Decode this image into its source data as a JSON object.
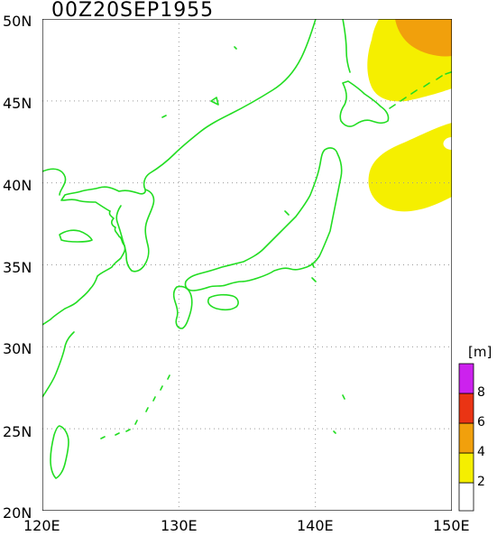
{
  "map": {
    "title": "00Z20SEP1955",
    "y_tick_labels": [
      "50N",
      "45N",
      "40N",
      "35N",
      "30N",
      "25N",
      "20N"
    ],
    "x_tick_labels": [
      "120E",
      "130E",
      "140E",
      "150E"
    ],
    "colors": {
      "coastline": "#22dd22",
      "grid": "#9a9a9a",
      "frame": "#000000"
    }
  },
  "legend": {
    "unit": "[m]",
    "entries": [
      {
        "label": "2",
        "color": "#f5ef00"
      },
      {
        "label": "4",
        "color": "#f1a00c"
      },
      {
        "label": "6",
        "color": "#ea3414"
      },
      {
        "label": "8",
        "color": "#cc22ee"
      }
    ],
    "lowest_color": "#ffffff"
  },
  "wave_height_field": {
    "color_2_4m": "#f5ef00",
    "color_4_6m": "#f1a00c"
  }
}
